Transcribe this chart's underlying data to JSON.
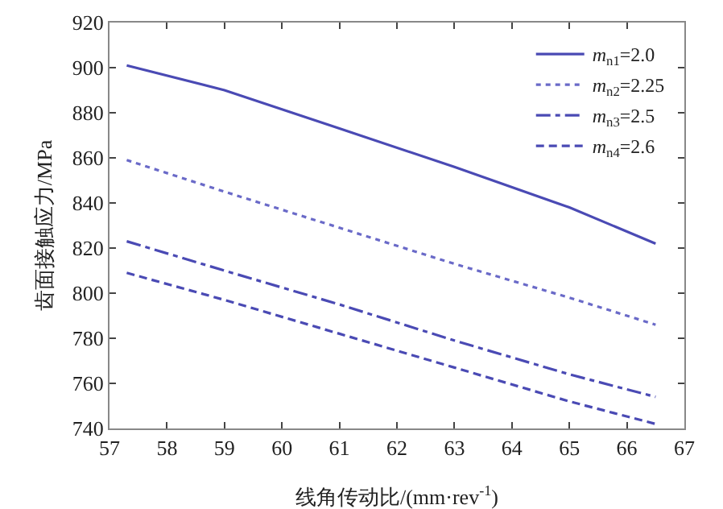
{
  "chart_data": {
    "type": "line",
    "xlabel": "线角传动比/(mm·rev$^{-1}$)",
    "ylabel": "齿面接触应力/MPa",
    "x": [
      57.3,
      59,
      61,
      63,
      65,
      66.5
    ],
    "series": [
      {
        "name": "m$_{n1}$=2.0",
        "color": "#4a4ab4",
        "line_style": "solid",
        "values": [
          901,
          890,
          873,
          856,
          838,
          822
        ]
      },
      {
        "name": "m$_{n2}$=2.25",
        "color": "#6a6ac8",
        "line_style": "dotted",
        "values": [
          859,
          845,
          829,
          813,
          798,
          786
        ]
      },
      {
        "name": "m$_{n3}$=2.5",
        "color": "#4a4ab4",
        "line_style": "dashdot",
        "values": [
          823,
          810,
          795,
          779,
          764,
          754
        ]
      },
      {
        "name": "m$_{n4}$=2.6",
        "color": "#4a4ab4",
        "line_style": "dashed",
        "values": [
          809,
          797,
          782,
          767,
          752,
          742
        ]
      }
    ],
    "xlim": [
      57,
      67
    ],
    "xticks": [
      57,
      58,
      59,
      60,
      61,
      62,
      63,
      64,
      65,
      66,
      67
    ],
    "ylim": [
      740,
      920
    ],
    "yticks": [
      740,
      760,
      780,
      800,
      820,
      840,
      860,
      880,
      900,
      920
    ],
    "grid": false,
    "legend": "top right",
    "marker": "none"
  }
}
